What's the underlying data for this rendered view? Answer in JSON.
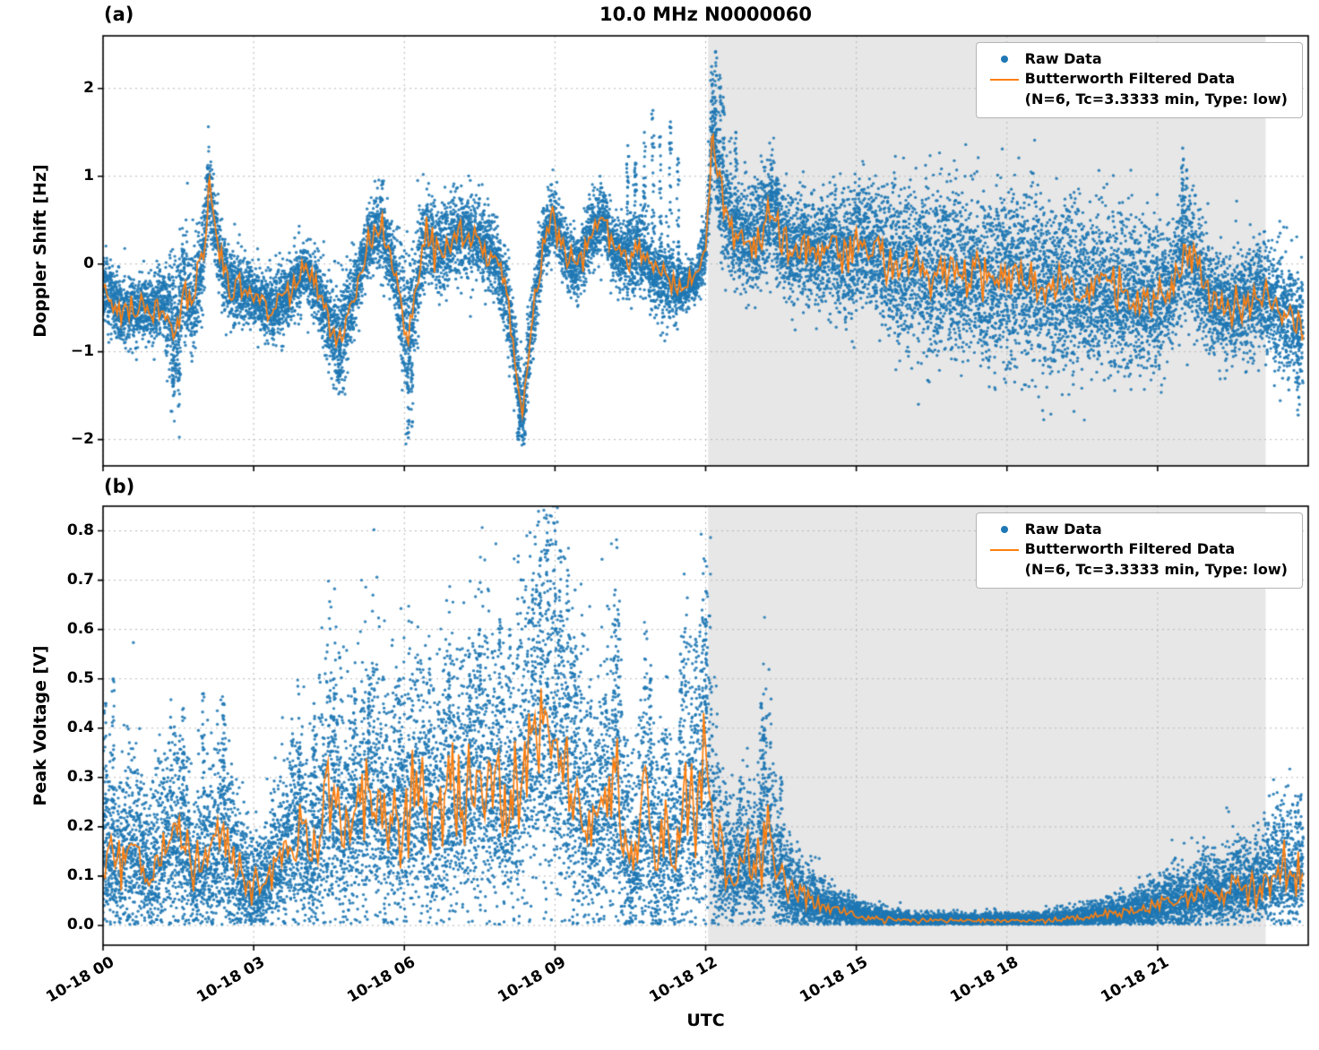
{
  "figure": {
    "title": "10.0 MHz N0000060",
    "xlabel": "UTC",
    "panel_a_label": "(a)",
    "panel_b_label": "(b)"
  },
  "legend": {
    "raw_label": "Raw Data",
    "filtered_label": "Butterworth Filtered Data",
    "filtered_sublabel": "(N=6, Tc=3.3333 min, Type: low)"
  },
  "colors": {
    "raw": "#1f77b4",
    "filtered": "#ff7f0e",
    "shade": "#e7e7e7",
    "grid": "#b8b8b8",
    "axis": "#000000"
  },
  "chart_data": [
    {
      "type": "scatter+line",
      "panel": "a",
      "ylabel": "Doppler Shift [Hz]",
      "ylim": [
        -2.3,
        2.6
      ],
      "yticks": [
        -2,
        -1,
        0,
        1,
        2
      ],
      "ytick_labels": [
        "−2",
        "−1",
        "0",
        "1",
        "2"
      ],
      "xlim": [
        0,
        24
      ],
      "x_end": 23.9,
      "xticks": [
        0,
        3,
        6,
        9,
        12,
        15,
        18,
        21
      ],
      "xtick_labels": [
        "10-18 00",
        "10-18 03",
        "10-18 06",
        "10-18 09",
        "10-18 12",
        "10-18 15",
        "10-18 18",
        "10-18 21"
      ],
      "grid": true,
      "legend_position": "upper right",
      "shaded_region": [
        12.05,
        23.15
      ],
      "scatter_skew": "symmetric",
      "series": {
        "filtered": {
          "t": [
            0,
            0.4,
            0.8,
            1.2,
            1.45,
            1.6,
            1.8,
            2.0,
            2.1,
            2.25,
            2.5,
            2.8,
            3.1,
            3.4,
            3.7,
            4.0,
            4.3,
            4.6,
            4.75,
            5.0,
            5.3,
            5.55,
            5.8,
            6.05,
            6.2,
            6.45,
            6.7,
            6.95,
            7.2,
            7.5,
            7.8,
            8.05,
            8.2,
            8.35,
            8.5,
            8.75,
            8.95,
            9.2,
            9.45,
            9.7,
            9.95,
            10.2,
            10.45,
            10.7,
            10.95,
            11.2,
            11.5,
            11.8,
            12.0,
            12.15,
            12.3,
            12.5,
            12.75,
            13.0,
            13.3,
            13.5,
            13.75,
            14.0,
            14.25,
            14.5,
            14.8,
            15.1,
            15.35,
            15.6,
            15.9,
            16.2,
            16.5,
            16.8,
            17.1,
            17.4,
            17.7,
            18.0,
            18.3,
            18.6,
            18.9,
            19.2,
            19.5,
            19.8,
            20.1,
            20.4,
            20.7,
            21.0,
            21.3,
            21.55,
            21.8,
            22.1,
            22.4,
            22.7,
            23.0,
            23.3,
            23.6,
            23.9
          ],
          "v": [
            -0.3,
            -0.55,
            -0.5,
            -0.45,
            -0.75,
            -0.2,
            -0.5,
            0.1,
            0.95,
            0.3,
            -0.25,
            -0.3,
            -0.4,
            -0.5,
            -0.35,
            -0.1,
            -0.3,
            -0.8,
            -0.85,
            -0.35,
            0.3,
            0.45,
            -0.1,
            -0.8,
            -0.4,
            0.4,
            0.1,
            0.3,
            0.35,
            0.25,
            0.05,
            -0.4,
            -1.1,
            -1.7,
            -0.9,
            0.2,
            0.55,
            0.1,
            -0.05,
            0.35,
            0.55,
            0.15,
            0.1,
            0.15,
            -0.1,
            -0.2,
            -0.25,
            -0.2,
            0.2,
            1.55,
            0.8,
            0.45,
            0.3,
            0.25,
            0.6,
            0.35,
            0.15,
            0.2,
            0.1,
            0.25,
            0.1,
            0.3,
            0.15,
            0.0,
            -0.05,
            0.05,
            -0.15,
            -0.05,
            -0.15,
            -0.1,
            -0.2,
            -0.1,
            -0.15,
            -0.2,
            -0.25,
            -0.2,
            -0.3,
            -0.25,
            -0.3,
            -0.35,
            -0.4,
            -0.35,
            -0.3,
            0.25,
            -0.1,
            -0.45,
            -0.5,
            -0.45,
            -0.35,
            -0.45,
            -0.6,
            -0.7
          ]
        },
        "raw_spread": [
          0.18,
          0.2,
          0.18,
          0.2,
          0.45,
          0.3,
          0.3,
          0.25,
          0.3,
          0.25,
          0.2,
          0.18,
          0.18,
          0.2,
          0.18,
          0.15,
          0.2,
          0.3,
          0.3,
          0.2,
          0.2,
          0.25,
          0.2,
          0.45,
          0.35,
          0.25,
          0.25,
          0.25,
          0.25,
          0.22,
          0.2,
          0.25,
          0.25,
          0.2,
          0.25,
          0.2,
          0.2,
          0.18,
          0.18,
          0.2,
          0.2,
          0.18,
          0.25,
          0.25,
          0.2,
          0.25,
          0.15,
          0.12,
          0.2,
          0.3,
          0.3,
          0.3,
          0.3,
          0.3,
          0.35,
          0.3,
          0.3,
          0.3,
          0.3,
          0.35,
          0.35,
          0.4,
          0.35,
          0.4,
          0.45,
          0.45,
          0.5,
          0.45,
          0.5,
          0.45,
          0.5,
          0.5,
          0.45,
          0.5,
          0.45,
          0.5,
          0.45,
          0.45,
          0.4,
          0.45,
          0.4,
          0.4,
          0.35,
          0.4,
          0.35,
          0.3,
          0.3,
          0.3,
          0.3,
          0.3,
          0.35,
          0.3
        ],
        "spikes": [
          {
            "t": 1.4,
            "v": -1.5
          },
          {
            "t": 1.5,
            "v": -1.62
          },
          {
            "t": 2.1,
            "v": 1.02
          },
          {
            "t": 4.7,
            "v": -1.35
          },
          {
            "t": 6.08,
            "v": -1.98
          },
          {
            "t": 6.15,
            "v": -1.85
          },
          {
            "t": 8.28,
            "v": -2.0
          },
          {
            "t": 8.38,
            "v": -2.05
          },
          {
            "t": 10.45,
            "v": 1.35
          },
          {
            "t": 10.6,
            "v": 1.15
          },
          {
            "t": 10.78,
            "v": 1.5
          },
          {
            "t": 10.95,
            "v": 1.75
          },
          {
            "t": 11.1,
            "v": 1.45
          },
          {
            "t": 11.3,
            "v": 1.62
          },
          {
            "t": 11.45,
            "v": 1.2
          },
          {
            "t": 12.12,
            "v": 2.25
          },
          {
            "t": 12.2,
            "v": 2.42
          },
          {
            "t": 12.28,
            "v": 2.15
          },
          {
            "t": 12.35,
            "v": 1.9
          },
          {
            "t": 12.6,
            "v": 1.5
          },
          {
            "t": 13.3,
            "v": 0.92
          },
          {
            "t": 13.42,
            "v": 0.98
          },
          {
            "t": 21.5,
            "v": 1.32
          },
          {
            "t": 23.8,
            "v": -1.72
          }
        ]
      }
    },
    {
      "type": "scatter+line",
      "panel": "b",
      "ylabel": "Peak Voltage [V]",
      "ylim": [
        -0.04,
        0.85
      ],
      "yticks": [
        0.0,
        0.1,
        0.2,
        0.3,
        0.4,
        0.5,
        0.6,
        0.7,
        0.8
      ],
      "ytick_labels": [
        "0.0",
        "0.1",
        "0.2",
        "0.3",
        "0.4",
        "0.5",
        "0.6",
        "0.7",
        "0.8"
      ],
      "xlim": [
        0,
        24
      ],
      "x_end": 23.9,
      "xticks": [
        0,
        3,
        6,
        9,
        12,
        15,
        18,
        21
      ],
      "xtick_labels": [
        "10-18 00",
        "10-18 03",
        "10-18 06",
        "10-18 09",
        "10-18 12",
        "10-18 15",
        "10-18 18",
        "10-18 21"
      ],
      "grid": true,
      "legend_position": "upper right",
      "shaded_region": [
        12.05,
        23.15
      ],
      "scatter_skew": "positive",
      "series": {
        "filtered": {
          "t": [
            0,
            0.3,
            0.6,
            0.9,
            1.2,
            1.5,
            1.8,
            2.1,
            2.4,
            2.7,
            3.0,
            3.3,
            3.6,
            3.9,
            4.2,
            4.5,
            4.8,
            5.1,
            5.4,
            5.7,
            6.0,
            6.3,
            6.6,
            6.9,
            7.2,
            7.5,
            7.8,
            8.1,
            8.4,
            8.7,
            9.0,
            9.2,
            9.4,
            9.6,
            9.8,
            10.0,
            10.2,
            10.4,
            10.6,
            10.8,
            11.0,
            11.2,
            11.4,
            11.6,
            11.8,
            12.0,
            12.2,
            12.4,
            12.6,
            12.8,
            13.0,
            13.2,
            13.4,
            13.6,
            13.8,
            14.0,
            14.3,
            14.6,
            15.0,
            15.4,
            15.8,
            16.2,
            16.6,
            17.0,
            17.4,
            17.8,
            18.2,
            18.6,
            19.0,
            19.4,
            19.8,
            20.2,
            20.6,
            21.0,
            21.3,
            21.6,
            21.9,
            22.2,
            22.5,
            22.8,
            23.1,
            23.4,
            23.7,
            23.9
          ],
          "v": [
            0.15,
            0.12,
            0.17,
            0.1,
            0.16,
            0.2,
            0.1,
            0.14,
            0.17,
            0.1,
            0.07,
            0.1,
            0.15,
            0.19,
            0.14,
            0.28,
            0.18,
            0.24,
            0.28,
            0.2,
            0.24,
            0.26,
            0.2,
            0.28,
            0.24,
            0.32,
            0.27,
            0.24,
            0.35,
            0.42,
            0.38,
            0.33,
            0.28,
            0.22,
            0.2,
            0.27,
            0.3,
            0.16,
            0.12,
            0.27,
            0.14,
            0.19,
            0.12,
            0.3,
            0.2,
            0.37,
            0.18,
            0.12,
            0.1,
            0.14,
            0.1,
            0.22,
            0.11,
            0.08,
            0.06,
            0.05,
            0.04,
            0.03,
            0.02,
            0.015,
            0.012,
            0.01,
            0.01,
            0.01,
            0.01,
            0.01,
            0.01,
            0.01,
            0.012,
            0.015,
            0.02,
            0.025,
            0.03,
            0.04,
            0.05,
            0.045,
            0.07,
            0.055,
            0.08,
            0.075,
            0.09,
            0.11,
            0.1,
            0.12
          ]
        },
        "raw_spread": [
          0.07,
          0.06,
          0.08,
          0.05,
          0.07,
          0.09,
          0.05,
          0.07,
          0.08,
          0.05,
          0.04,
          0.05,
          0.07,
          0.09,
          0.07,
          0.12,
          0.08,
          0.1,
          0.12,
          0.09,
          0.1,
          0.11,
          0.09,
          0.12,
          0.1,
          0.13,
          0.11,
          0.1,
          0.15,
          0.18,
          0.16,
          0.14,
          0.12,
          0.1,
          0.09,
          0.12,
          0.13,
          0.08,
          0.06,
          0.12,
          0.07,
          0.09,
          0.06,
          0.13,
          0.09,
          0.16,
          0.08,
          0.05,
          0.04,
          0.06,
          0.05,
          0.1,
          0.05,
          0.04,
          0.03,
          0.025,
          0.02,
          0.015,
          0.01,
          0.008,
          0.006,
          0.005,
          0.005,
          0.005,
          0.005,
          0.005,
          0.005,
          0.005,
          0.006,
          0.008,
          0.01,
          0.012,
          0.015,
          0.02,
          0.025,
          0.022,
          0.03,
          0.025,
          0.035,
          0.032,
          0.04,
          0.05,
          0.045,
          0.05
        ],
        "spikes": [
          {
            "t": 0.05,
            "v": 0.45
          },
          {
            "t": 0.2,
            "v": 0.5
          },
          {
            "t": 1.6,
            "v": 0.44
          },
          {
            "t": 2.0,
            "v": 0.47
          },
          {
            "t": 2.4,
            "v": 0.45
          },
          {
            "t": 3.9,
            "v": 0.42
          },
          {
            "t": 4.2,
            "v": 0.45
          },
          {
            "t": 4.6,
            "v": 0.5
          },
          {
            "t": 5.0,
            "v": 0.48
          },
          {
            "t": 5.3,
            "v": 0.5
          },
          {
            "t": 5.9,
            "v": 0.5
          },
          {
            "t": 6.5,
            "v": 0.52
          },
          {
            "t": 6.9,
            "v": 0.57
          },
          {
            "t": 7.3,
            "v": 0.55
          },
          {
            "t": 7.5,
            "v": 0.6
          },
          {
            "t": 7.9,
            "v": 0.62
          },
          {
            "t": 8.1,
            "v": 0.6
          },
          {
            "t": 8.55,
            "v": 0.7
          },
          {
            "t": 8.7,
            "v": 0.74
          },
          {
            "t": 8.85,
            "v": 0.78
          },
          {
            "t": 9.0,
            "v": 0.8
          },
          {
            "t": 9.1,
            "v": 0.76
          },
          {
            "t": 9.25,
            "v": 0.72
          },
          {
            "t": 9.4,
            "v": 0.68
          },
          {
            "t": 10.2,
            "v": 0.68
          },
          {
            "t": 10.25,
            "v": 0.64
          },
          {
            "t": 10.9,
            "v": 0.5
          },
          {
            "t": 11.5,
            "v": 0.55
          },
          {
            "t": 11.8,
            "v": 0.58
          },
          {
            "t": 11.95,
            "v": 0.66
          },
          {
            "t": 12.0,
            "v": 0.62
          },
          {
            "t": 12.7,
            "v": 0.3
          },
          {
            "t": 13.1,
            "v": 0.45
          },
          {
            "t": 13.15,
            "v": 0.42
          },
          {
            "t": 13.5,
            "v": 0.3
          }
        ]
      }
    }
  ]
}
